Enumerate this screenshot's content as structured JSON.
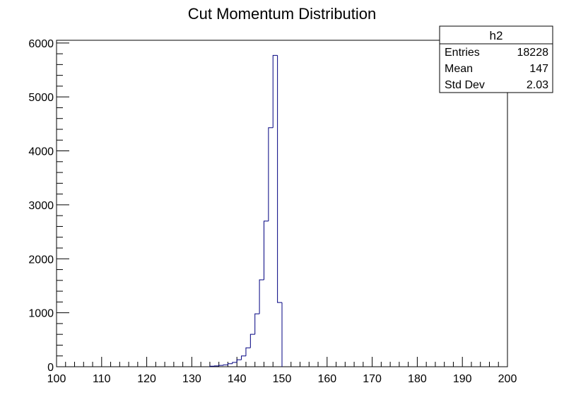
{
  "chart_data": {
    "type": "bar",
    "title": "Cut Momentum Distribution",
    "xlabel": "",
    "ylabel": "",
    "xlim": [
      100,
      200
    ],
    "ylim": [
      0,
      6050
    ],
    "bin_width": 1,
    "x_ticks": [
      100,
      110,
      120,
      130,
      140,
      150,
      160,
      170,
      180,
      190,
      200
    ],
    "y_ticks": [
      0,
      1000,
      2000,
      3000,
      4000,
      5000,
      6000
    ],
    "grid": false,
    "series": [
      {
        "color": "#000080",
        "bins": [
          {
            "x": 134,
            "y": 10
          },
          {
            "x": 135,
            "y": 15
          },
          {
            "x": 136,
            "y": 25
          },
          {
            "x": 137,
            "y": 35
          },
          {
            "x": 138,
            "y": 55
          },
          {
            "x": 139,
            "y": 80
          },
          {
            "x": 140,
            "y": 130
          },
          {
            "x": 141,
            "y": 200
          },
          {
            "x": 142,
            "y": 350
          },
          {
            "x": 143,
            "y": 600
          },
          {
            "x": 144,
            "y": 980
          },
          {
            "x": 145,
            "y": 1610
          },
          {
            "x": 146,
            "y": 2700
          },
          {
            "x": 147,
            "y": 4430
          },
          {
            "x": 148,
            "y": 5770
          },
          {
            "x": 149,
            "y": 1190
          }
        ]
      }
    ],
    "stats_box": {
      "title": "h2",
      "rows": [
        {
          "label": "Entries",
          "value": "18228"
        },
        {
          "label": "Mean",
          "value": "147"
        },
        {
          "label": "Std Dev",
          "value": "2.03"
        }
      ]
    }
  }
}
